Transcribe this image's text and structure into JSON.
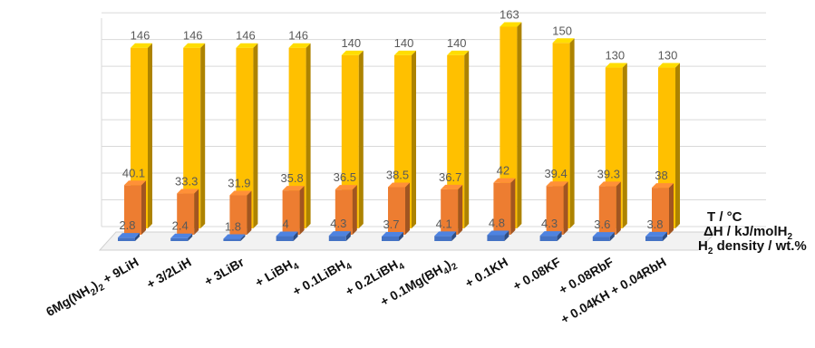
{
  "chart_data": {
    "type": "bar",
    "view": "3d-clustered",
    "categories": [
      {
        "base": "6Mg(NH",
        "sub": "2",
        "tail": ")",
        "sub2": "2",
        "tail2": " + 9LiH"
      },
      {
        "base": "+ 3/2LiH"
      },
      {
        "base": "+ 3LiBr"
      },
      {
        "base": "+ LiBH",
        "sub": "4"
      },
      {
        "base": "+ 0.1LiBH",
        "sub": "4"
      },
      {
        "base": "+ 0.2LiBH",
        "sub": "4"
      },
      {
        "base": "+ 0.1Mg(BH",
        "sub": "4",
        "tail": ")",
        "sub2": "2"
      },
      {
        "base": "+ 0.1KH"
      },
      {
        "base": "+ 0.08KF"
      },
      {
        "base": "+ 0.08RbF"
      },
      {
        "base": "+ 0.04KH + 0.04RbH"
      }
    ],
    "series": [
      {
        "name": "T / °C",
        "color": "#FFC000",
        "values": [
          146,
          146,
          146,
          146,
          140,
          140,
          140,
          163,
          150,
          130,
          130
        ],
        "labels": [
          "146",
          "146",
          "146",
          "146",
          "140",
          "140",
          "140",
          "163",
          "150",
          "130",
          "130"
        ]
      },
      {
        "name": "ΔH / kJ/molH2",
        "name_parts": {
          "base": "ΔH / kJ/molH",
          "sub": "2"
        },
        "color": "#ED7D31",
        "values": [
          40.1,
          33.3,
          31.9,
          35.8,
          36.5,
          38.5,
          36.7,
          42,
          39.4,
          39.3,
          38
        ],
        "labels": [
          "40.1",
          "33.3",
          "31.9",
          "35.8",
          "36.5",
          "38.5",
          "36.7",
          "42",
          "39.4",
          "39.3",
          "38"
        ]
      },
      {
        "name": "H2 density / wt.%",
        "name_parts": {
          "base": "H",
          "sub": "2",
          "tail": " density / wt.%"
        },
        "color": "#4472C4",
        "values": [
          2.8,
          2.4,
          1.8,
          4,
          4.3,
          3.7,
          4.1,
          4.8,
          4.3,
          3.6,
          3.8
        ],
        "labels": [
          "2.8",
          "2.4",
          "1.8",
          "4",
          "4.3",
          "3.7",
          "4.1",
          "4.8",
          "4.3",
          "3.6",
          "3.8"
        ]
      }
    ],
    "ylim": [
      0,
      180
    ],
    "grid": true
  }
}
